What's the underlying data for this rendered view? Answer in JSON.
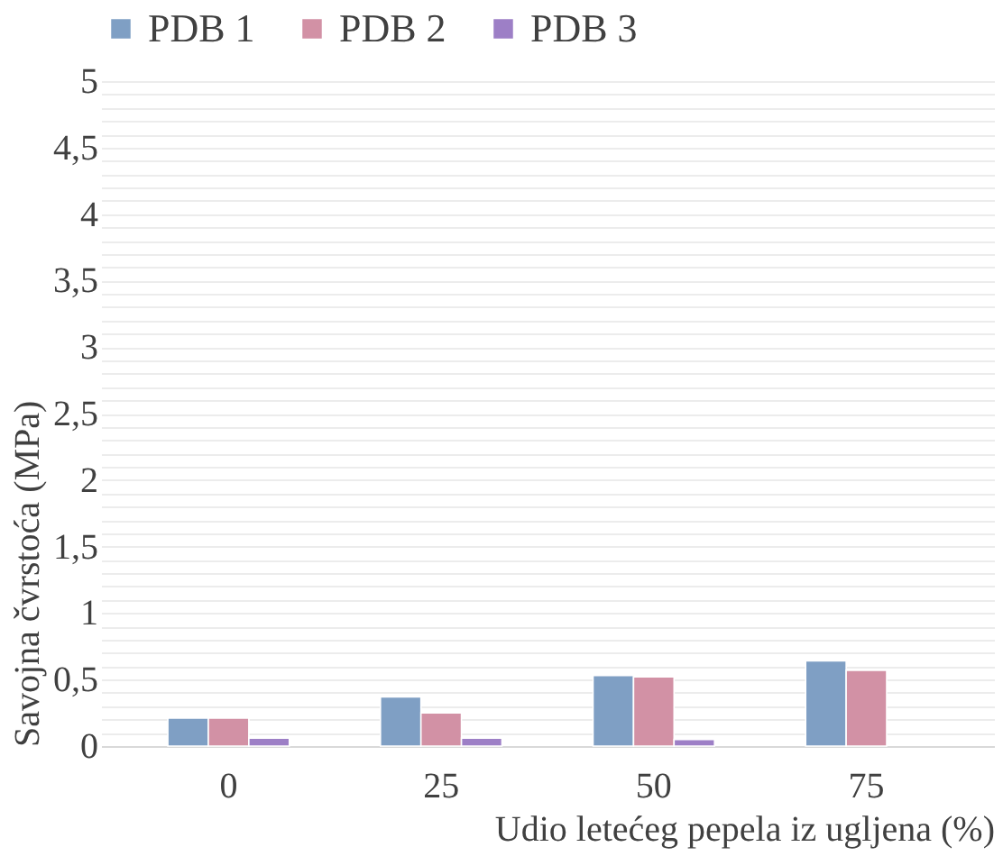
{
  "chart_data": {
    "type": "bar",
    "xlabel": "Udio letećeg pepela iz ugljena (%)",
    "ylabel": "Savojna čvrstoća (MPa)",
    "categories": [
      "0",
      "25",
      "50",
      "75"
    ],
    "series": [
      {
        "name": "PDB 1",
        "color": "#7f9fc4",
        "values": [
          0.21,
          0.37,
          0.53,
          0.64
        ]
      },
      {
        "name": "PDB 2",
        "color": "#d291a5",
        "values": [
          0.21,
          0.25,
          0.52,
          0.57
        ]
      },
      {
        "name": "PDB 3",
        "color": "#9d7fc6",
        "values": [
          0.06,
          0.06,
          0.05,
          null
        ]
      }
    ],
    "ylim": [
      0,
      5
    ],
    "yticks": [
      0,
      {
        "value": 0.1,
        "label": null
      },
      {
        "value": 0.2,
        "label": null
      },
      {
        "value": 0.3,
        "label": null
      },
      {
        "value": 0.4,
        "label": null
      },
      {
        "value": 0.5,
        "label": "0,5"
      },
      {
        "value": 0.6,
        "label": null
      },
      {
        "value": 0.7,
        "label": null
      },
      {
        "value": 0.8,
        "label": null
      },
      {
        "value": 0.9,
        "label": null
      },
      1,
      {
        "value": 1.1,
        "label": null
      },
      {
        "value": 1.2,
        "label": null
      },
      {
        "value": 1.3,
        "label": null
      },
      {
        "value": 1.4,
        "label": null
      },
      {
        "value": 1.5,
        "label": "1,5"
      },
      {
        "value": 1.6,
        "label": null
      },
      {
        "value": 1.7,
        "label": null
      },
      {
        "value": 1.8,
        "label": null
      },
      {
        "value": 1.9,
        "label": null
      },
      2,
      {
        "value": 2.1,
        "label": null
      },
      {
        "value": 2.2,
        "label": null
      },
      {
        "value": 2.3,
        "label": null
      },
      {
        "value": 2.4,
        "label": null
      },
      {
        "value": 2.5,
        "label": "2,5"
      },
      {
        "value": 2.6,
        "label": null
      },
      {
        "value": 2.7,
        "label": null
      },
      {
        "value": 2.8,
        "label": null
      },
      {
        "value": 2.9,
        "label": null
      },
      3,
      {
        "value": 3.1,
        "label": null
      },
      {
        "value": 3.2,
        "label": null
      },
      {
        "value": 3.3,
        "label": null
      },
      {
        "value": 3.4,
        "label": null
      },
      {
        "value": 3.5,
        "label": "3,5"
      },
      {
        "value": 3.6,
        "label": null
      },
      {
        "value": 3.7,
        "label": null
      },
      {
        "value": 3.8,
        "label": null
      },
      {
        "value": 3.9,
        "label": null
      },
      4,
      {
        "value": 4.1,
        "label": null
      },
      {
        "value": 4.2,
        "label": null
      },
      {
        "value": 4.3,
        "label": null
      },
      {
        "value": 4.4,
        "label": null
      },
      {
        "value": 4.5,
        "label": "4,5"
      },
      {
        "value": 4.6,
        "label": null
      },
      {
        "value": 4.7,
        "label": null
      },
      {
        "value": 4.8,
        "label": null
      },
      {
        "value": 4.9,
        "label": null
      },
      5
    ],
    "grid": true,
    "legend": "top"
  }
}
